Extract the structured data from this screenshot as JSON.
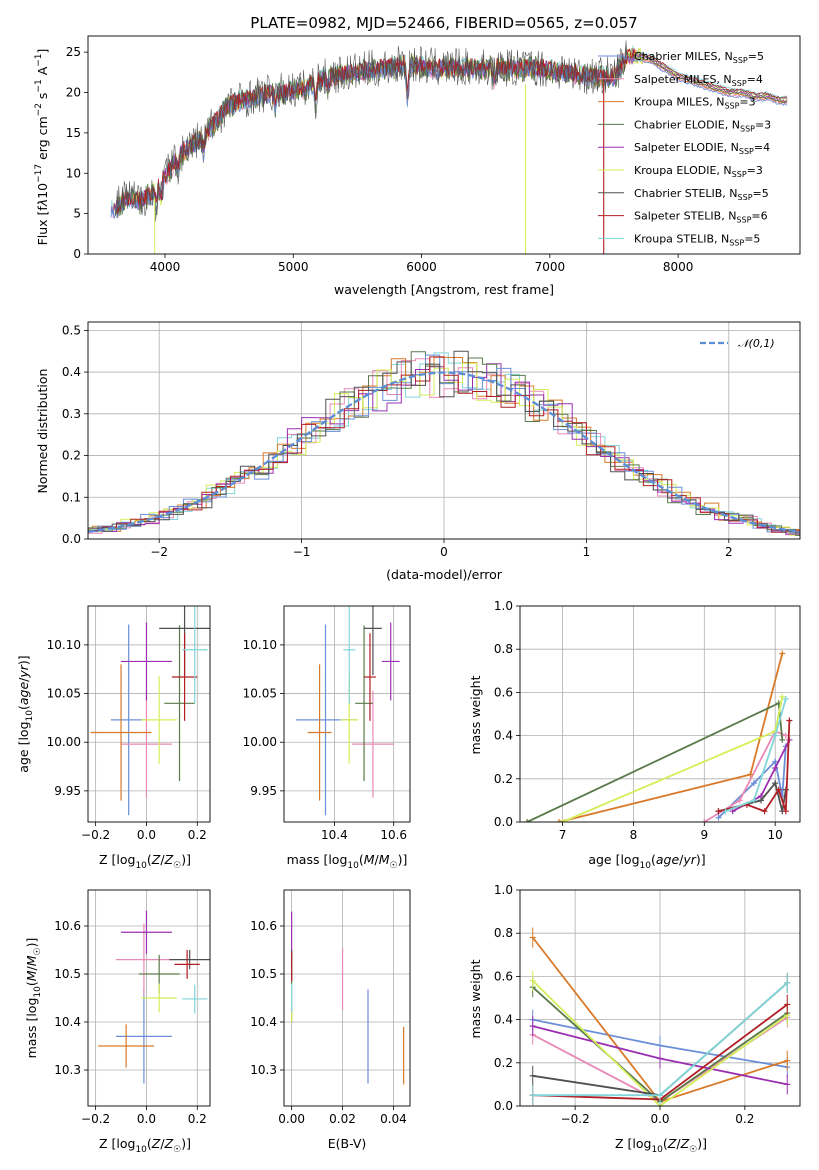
{
  "figure_title": "PLATE=0982, MJD=52466, FIBERID=0565, z=0.057",
  "colors": {
    "chabrier_miles": "#6a8fd8",
    "salpeter_miles": "#e88ab8",
    "kroupa_miles": "#d97a28",
    "chabrier_elodie": "#5a7a4a",
    "salpeter_elodie": "#9a30b0",
    "kroupa_elodie": "#d4ee5a",
    "chabrier_stelib": "#505050",
    "salpeter_stelib": "#b01e24",
    "kroupa_stelib": "#80d6d9"
  },
  "series_names": [
    "Chabrier MILES, N_SSP=5",
    "Salpeter MILES, N_SSP=4",
    "Kroupa MILES, N_SSP=3",
    "Chabrier ELODIE, N_SSP=3",
    "Salpeter ELODIE, N_SSP=4",
    "Kroupa ELODIE, N_SSP=3",
    "Chabrier STELIB, N_SSP=5",
    "Salpeter STELIB, N_SSP=6",
    "Kroupa STELIB, N_SSP=5"
  ],
  "chart_data": [
    {
      "type": "line",
      "title": "PLATE=0982, MJD=52466, FIBERID=0565, z=0.057",
      "xlabel": "wavelength [Angstrom, rest frame]",
      "ylabel": "Flux [fλ10^-17 erg cm^-2 s^-1 A^-1]",
      "xlim": [
        3400,
        8950
      ],
      "ylim": [
        0,
        27
      ],
      "xticks": [
        4000,
        5000,
        6000,
        7000,
        8000
      ],
      "yticks": [
        0,
        5,
        10,
        15,
        20,
        25
      ],
      "grid": false,
      "legend_position": "right",
      "legend": [
        "Chabrier MILES, N_SSP=5",
        "Salpeter MILES, N_SSP=4",
        "Kroupa MILES, N_SSP=3",
        "Chabrier ELODIE, N_SSP=3",
        "Salpeter ELODIE, N_SSP=4",
        "Kroupa ELODIE, N_SSP=3",
        "Chabrier STELIB, N_SSP=5",
        "Salpeter STELIB, N_SSP=6",
        "Kroupa STELIB, N_SSP=5"
      ],
      "spectrum_continuum": {
        "wavelength": [
          3600,
          3700,
          3800,
          3900,
          4000,
          4100,
          4200,
          4300,
          4400,
          4500,
          4700,
          4900,
          5100,
          5200,
          5300,
          5500,
          5700,
          5900,
          6100,
          6300,
          6500,
          6700,
          6900,
          7100,
          7300,
          7500,
          7600
        ],
        "flux": [
          5.5,
          7.0,
          6.5,
          7.5,
          9.5,
          12.0,
          13.5,
          14.5,
          16.5,
          18.5,
          19.5,
          20.0,
          20.5,
          21.5,
          22.0,
          22.5,
          23.0,
          23.5,
          23.0,
          23.0,
          23.0,
          23.0,
          23.0,
          22.5,
          22.0,
          22.0,
          24.5
        ]
      },
      "model_continuum": {
        "wavelength": [
          7300,
          7400,
          7500,
          7600,
          7700,
          7800,
          7900,
          8000,
          8100,
          8200,
          8300,
          8400,
          8500,
          8600,
          8700,
          8800,
          8850
        ],
        "flux": [
          22.5,
          22.0,
          23.0,
          24.5,
          24.5,
          24.0,
          23.0,
          22.0,
          21.5,
          21.0,
          20.5,
          20.0,
          20.0,
          19.5,
          19.5,
          19.0,
          19.0
        ]
      }
    },
    {
      "type": "histogram",
      "xlabel": "(data-model)/error",
      "ylabel": "Normed distribution",
      "xlim": [
        -2.5,
        2.5
      ],
      "ylim": [
        0,
        0.52
      ],
      "xticks": [
        -2,
        -1,
        0,
        1,
        2
      ],
      "yticks": [
        0.0,
        0.1,
        0.2,
        0.3,
        0.4,
        0.5
      ],
      "grid": true,
      "legend": [
        "𝒩(0,1)"
      ],
      "legend_position": "top-right",
      "bin_width": 0.1,
      "reference_curve": "standard normal density"
    },
    {
      "type": "scatter",
      "xlabel": "Z [log10(Z/Z☉)]",
      "ylabel": "age  [log10(age/yr)]",
      "xlim": [
        -0.23,
        0.25
      ],
      "ylim": [
        9.918,
        10.14
      ],
      "xticks": [
        -0.2,
        0.0,
        0.2
      ],
      "yticks": [
        9.95,
        10.0,
        10.05,
        10.1
      ],
      "grid": true,
      "points": [
        {
          "x": -0.07,
          "y": 10.023,
          "xerr": 0.07,
          "yerr": 0.098
        },
        {
          "x": 0.0,
          "y": 9.998,
          "xerr": 0.1,
          "yerr": 0.055
        },
        {
          "x": -0.1,
          "y": 10.01,
          "xerr": 0.12,
          "yerr": 0.07
        },
        {
          "x": 0.13,
          "y": 10.04,
          "xerr": 0.06,
          "yerr": 0.08
        },
        {
          "x": 0.0,
          "y": 10.083,
          "xerr": 0.1,
          "yerr": 0.04
        },
        {
          "x": 0.05,
          "y": 10.023,
          "xerr": 0.07,
          "yerr": 0.045
        },
        {
          "x": 0.15,
          "y": 10.117,
          "xerr": 0.1,
          "yerr": 0.048
        },
        {
          "x": 0.15,
          "y": 10.067,
          "xerr": 0.05,
          "yerr": 0.045
        },
        {
          "x": 0.19,
          "y": 10.095,
          "xerr": 0.05,
          "yerr": 0.055
        }
      ]
    },
    {
      "type": "scatter",
      "xlabel": "mass [log10(M/M☉)]",
      "xlim": [
        10.23,
        10.655
      ],
      "ylim": [
        9.918,
        10.14
      ],
      "xticks": [
        10.4,
        10.6
      ],
      "yticks": [
        9.95,
        10.0,
        10.05,
        10.1
      ],
      "grid": true,
      "points": [
        {
          "x": 10.37,
          "y": 10.023,
          "xerr": 0.1,
          "yerr": 0.098
        },
        {
          "x": 10.53,
          "y": 9.998,
          "xerr": 0.07,
          "yerr": 0.055
        },
        {
          "x": 10.35,
          "y": 10.01,
          "xerr": 0.04,
          "yerr": 0.07
        },
        {
          "x": 10.5,
          "y": 10.04,
          "xerr": 0.03,
          "yerr": 0.08
        },
        {
          "x": 10.59,
          "y": 10.083,
          "xerr": 0.03,
          "yerr": 0.04
        },
        {
          "x": 10.45,
          "y": 10.023,
          "xerr": 0.03,
          "yerr": 0.045
        },
        {
          "x": 10.53,
          "y": 10.117,
          "xerr": 0.03,
          "yerr": 0.048
        },
        {
          "x": 10.52,
          "y": 10.067,
          "xerr": 0.02,
          "yerr": 0.045
        },
        {
          "x": 10.45,
          "y": 10.095,
          "xerr": 0.02,
          "yerr": 0.055
        }
      ]
    },
    {
      "type": "line",
      "xlabel": "age  [log10(age/yr)]",
      "ylabel": "mass weight",
      "xlim": [
        6.4,
        10.35
      ],
      "ylim": [
        0,
        1
      ],
      "xticks": [
        7,
        8,
        9,
        10
      ],
      "yticks": [
        0.0,
        0.2,
        0.4,
        0.6,
        0.8,
        1.0
      ],
      "grid": true,
      "series": [
        {
          "x": [
            9.2,
            9.7,
            10.0,
            10.1,
            10.15
          ],
          "y": [
            0.02,
            0.18,
            0.28,
            0.12,
            0.35
          ]
        },
        {
          "x": [
            9.0,
            9.5,
            10.0,
            10.15
          ],
          "y": [
            0.0,
            0.1,
            0.42,
            0.4
          ]
        },
        {
          "x": [
            6.95,
            9.65,
            10.1
          ],
          "y": [
            0.0,
            0.22,
            0.78
          ]
        },
        {
          "x": [
            6.5,
            10.05,
            10.1
          ],
          "y": [
            0.0,
            0.55,
            0.38
          ]
        },
        {
          "x": [
            9.4,
            9.8,
            10.0,
            10.2
          ],
          "y": [
            0.05,
            0.12,
            0.25,
            0.38
          ]
        },
        {
          "x": [
            7.0,
            10.0,
            10.1
          ],
          "y": [
            0.0,
            0.42,
            0.58
          ]
        },
        {
          "x": [
            9.2,
            9.8,
            10.0,
            10.1,
            10.15
          ],
          "y": [
            0.05,
            0.1,
            0.18,
            0.05,
            0.15
          ]
        },
        {
          "x": [
            9.2,
            9.6,
            9.85,
            10.05,
            10.15,
            10.2
          ],
          "y": [
            0.05,
            0.08,
            0.05,
            0.15,
            0.05,
            0.47
          ]
        },
        {
          "x": [
            9.3,
            9.7,
            10.0,
            10.15
          ],
          "y": [
            0.05,
            0.1,
            0.4,
            0.57
          ]
        }
      ]
    },
    {
      "type": "scatter",
      "xlabel": "Z [log10(Z/Z☉)]",
      "ylabel": "mass [log10(M/M☉)]",
      "xlim": [
        -0.23,
        0.25
      ],
      "ylim": [
        10.225,
        10.675
      ],
      "xticks": [
        -0.2,
        0.0,
        0.2
      ],
      "yticks": [
        10.3,
        10.4,
        10.5,
        10.6
      ],
      "grid": true,
      "points": [
        {
          "x": -0.01,
          "y": 10.37,
          "xerr": 0.11,
          "yerr": 0.098
        },
        {
          "x": -0.01,
          "y": 10.53,
          "xerr": 0.11,
          "yerr": 0.075
        },
        {
          "x": -0.08,
          "y": 10.35,
          "xerr": 0.11,
          "yerr": 0.045
        },
        {
          "x": 0.05,
          "y": 10.5,
          "xerr": 0.08,
          "yerr": 0.04
        },
        {
          "x": 0.0,
          "y": 10.587,
          "xerr": 0.1,
          "yerr": 0.045
        },
        {
          "x": 0.05,
          "y": 10.45,
          "xerr": 0.07,
          "yerr": 0.03
        },
        {
          "x": 0.17,
          "y": 10.53,
          "xerr": 0.08,
          "yerr": 0.02
        },
        {
          "x": 0.16,
          "y": 10.52,
          "xerr": 0.05,
          "yerr": 0.03
        },
        {
          "x": 0.19,
          "y": 10.448,
          "xerr": 0.05,
          "yerr": 0.03
        }
      ]
    },
    {
      "type": "scatter",
      "xlabel": "E(B-V)",
      "xlim": [
        -0.003,
        0.0465
      ],
      "ylim": [
        10.225,
        10.675
      ],
      "xticks": [
        0.0,
        0.02,
        0.04
      ],
      "yticks": [
        10.3,
        10.4,
        10.5,
        10.6
      ],
      "grid": true,
      "points": [
        {
          "x": 0.03,
          "y": 10.37,
          "yerr": 0.098
        },
        {
          "x": 0.02,
          "y": 10.49,
          "yerr": 0.065
        },
        {
          "x": 0.044,
          "y": 10.33,
          "yerr": 0.06
        },
        {
          "x": 0.0,
          "y": 10.45,
          "yerr": 0.05
        },
        {
          "x": 0.0,
          "y": 10.585,
          "yerr": 0.045
        },
        {
          "x": 0.0,
          "y": 10.44,
          "yerr": 0.04
        },
        {
          "x": 0.0,
          "y": 10.52,
          "yerr": 0.03
        },
        {
          "x": 0.0,
          "y": 10.515,
          "yerr": 0.03
        },
        {
          "x": 0.0,
          "y": 10.45,
          "yerr": 0.03
        }
      ]
    },
    {
      "type": "line",
      "xlabel": "Z [log10(Z/Z☉)]",
      "ylabel": "mass weight",
      "xlim": [
        -0.33,
        0.33
      ],
      "ylim": [
        0,
        1
      ],
      "xticks": [
        -0.2,
        0.0,
        0.2
      ],
      "yticks": [
        0.0,
        0.2,
        0.4,
        0.6,
        0.8,
        1.0
      ],
      "grid": true,
      "x_levels": [
        -0.3,
        0.0,
        0.3
      ],
      "series": [
        {
          "y": [
            0.4,
            0.28,
            0.18
          ]
        },
        {
          "y": [
            0.33,
            0.02,
            0.41
          ]
        },
        {
          "y": [
            0.78,
            0.02,
            0.21
          ]
        },
        {
          "y": [
            0.55,
            0.02,
            0.43
          ]
        },
        {
          "y": [
            0.37,
            0.22,
            0.1
          ]
        },
        {
          "y": [
            0.58,
            0.0,
            0.42
          ]
        },
        {
          "y": [
            0.14,
            0.05,
            0.57
          ]
        },
        {
          "y": [
            0.05,
            0.03,
            0.47
          ]
        },
        {
          "y": [
            0.05,
            0.05,
            0.57
          ]
        }
      ]
    }
  ]
}
